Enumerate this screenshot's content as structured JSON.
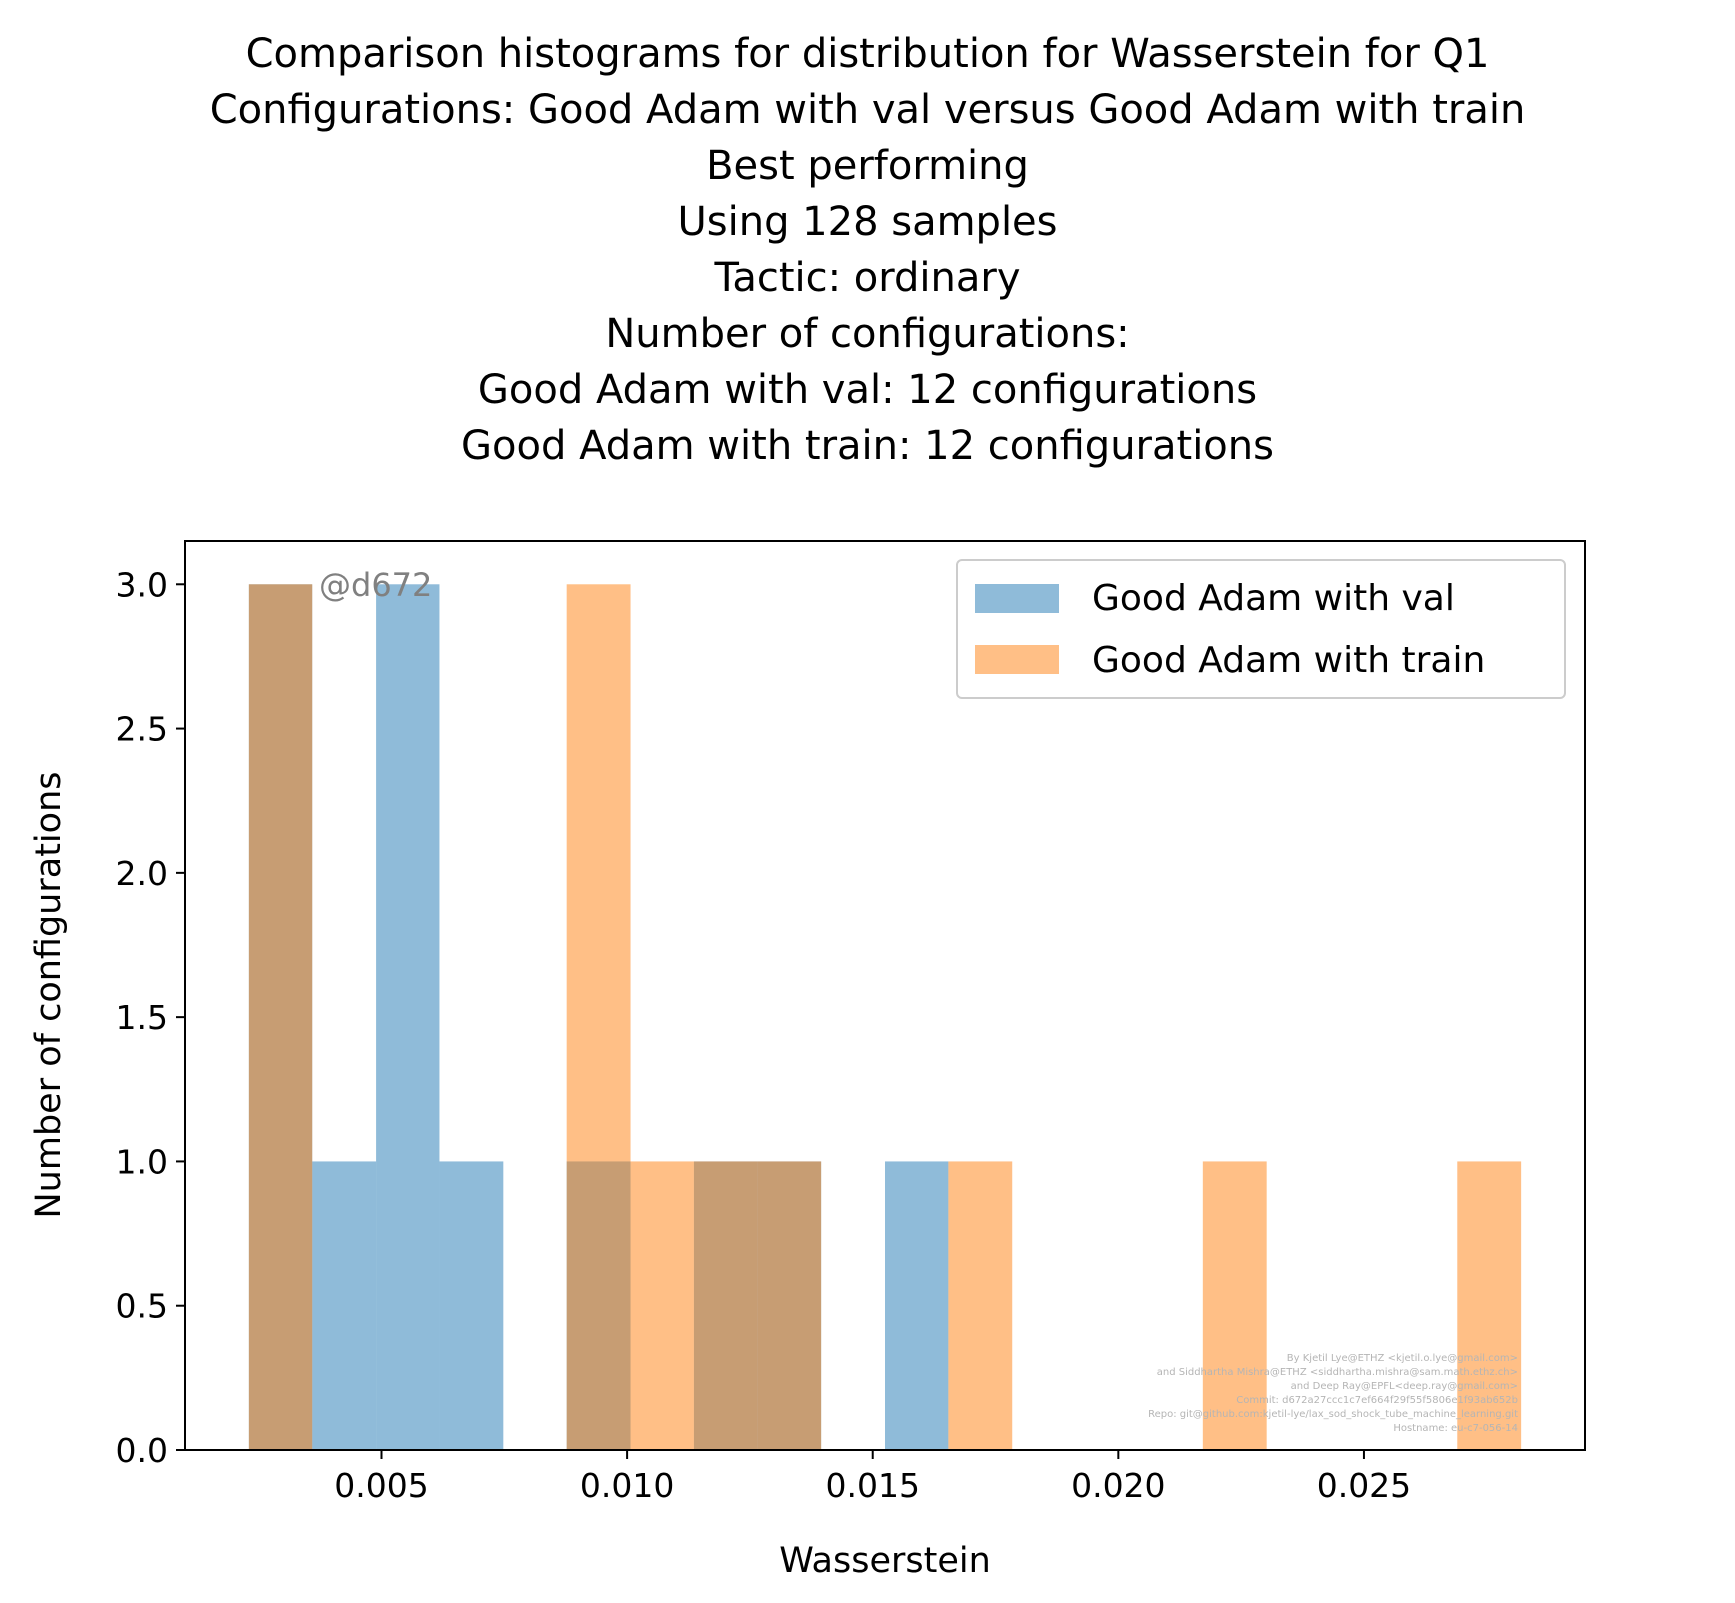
{
  "chart_data": {
    "type": "bar",
    "title_lines": [
      "Comparison histograms for distribution for Wasserstein for Q1",
      "Configurations: Good Adam with val versus Good Adam with train",
      "Best performing",
      "Using 128 samples",
      "Tactic: ordinary",
      "Number of configurations:",
      "Good Adam with val: 12 configurations",
      "Good Adam with train: 12 configurations"
    ],
    "xlabel": "Wasserstein",
    "ylabel": "Number of configurations",
    "xlim": [
      0.001,
      0.0295
    ],
    "ylim": [
      0,
      3.15
    ],
    "xticks": [
      {
        "value": 0.005,
        "label": "0.005"
      },
      {
        "value": 0.01,
        "label": "0.010"
      },
      {
        "value": 0.015,
        "label": "0.015"
      },
      {
        "value": 0.02,
        "label": "0.020"
      },
      {
        "value": 0.025,
        "label": "0.025"
      }
    ],
    "yticks": [
      {
        "value": 0.0,
        "label": "0.0"
      },
      {
        "value": 0.5,
        "label": "0.5"
      },
      {
        "value": 1.0,
        "label": "1.0"
      },
      {
        "value": 1.5,
        "label": "1.5"
      },
      {
        "value": 2.0,
        "label": "2.0"
      },
      {
        "value": 2.5,
        "label": "2.5"
      },
      {
        "value": 3.0,
        "label": "3.0"
      }
    ],
    "series": [
      {
        "name": "Good Adam with val",
        "color": "#1f77b4",
        "bins": [
          {
            "x0": 0.0023,
            "x1": 0.00359,
            "count": 3
          },
          {
            "x0": 0.00359,
            "x1": 0.00489,
            "count": 1
          },
          {
            "x0": 0.00489,
            "x1": 0.00618,
            "count": 3
          },
          {
            "x0": 0.00618,
            "x1": 0.00748,
            "count": 1
          },
          {
            "x0": 0.00877,
            "x1": 0.01007,
            "count": 1
          },
          {
            "x0": 0.01136,
            "x1": 0.01266,
            "count": 1
          },
          {
            "x0": 0.01266,
            "x1": 0.01395,
            "count": 1
          },
          {
            "x0": 0.01525,
            "x1": 0.01654,
            "count": 1
          }
        ]
      },
      {
        "name": "Good Adam with train",
        "color": "#ff7f0e",
        "bins": [
          {
            "x0": 0.0023,
            "x1": 0.00359,
            "count": 3
          },
          {
            "x0": 0.00877,
            "x1": 0.01007,
            "count": 3
          },
          {
            "x0": 0.01007,
            "x1": 0.01136,
            "count": 1
          },
          {
            "x0": 0.01136,
            "x1": 0.01266,
            "count": 1
          },
          {
            "x0": 0.01266,
            "x1": 0.01395,
            "count": 1
          },
          {
            "x0": 0.01654,
            "x1": 0.01784,
            "count": 1
          },
          {
            "x0": 0.02172,
            "x1": 0.02302,
            "count": 1
          },
          {
            "x0": 0.0269,
            "x1": 0.0282,
            "count": 1
          }
        ]
      }
    ],
    "bar_opacity": 0.5,
    "legend_placement": "top-right",
    "grid": false,
    "watermark": "@d672",
    "credits": [
      "By Kjetil Lye@ETHZ <kjetil.o.lye@gmail.com>",
      "and Siddhartha Mishra@ETHZ <siddhartha.mishra@sam.math.ethz.ch>",
      "and Deep Ray@EPFL<deep.ray@gmail.com>",
      "Commit: d672a27ccc1c7ef664f29f55f5806e1f93ab652b",
      "Repo: git@github.com:kjetil-lye/lax_sod_shock_tube_machine_learning.git",
      "Hostname: eu-c7-056-14"
    ]
  }
}
